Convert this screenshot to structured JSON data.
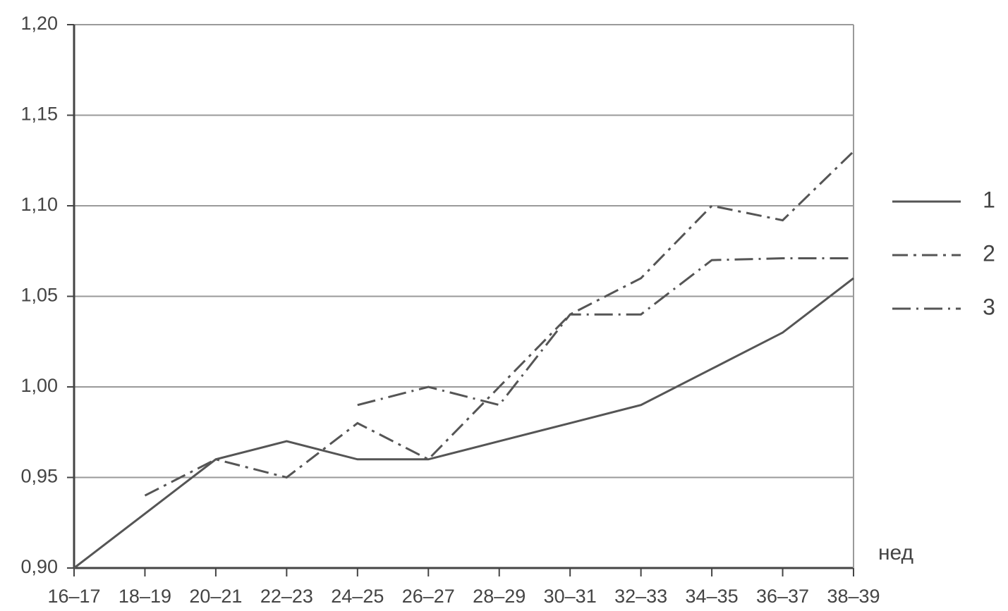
{
  "chart_data": {
    "type": "line",
    "categories": [
      "16–17",
      "18–19",
      "20–21",
      "22–23",
      "24–25",
      "26–27",
      "28–29",
      "30–31",
      "32–33",
      "34–35",
      "36–37",
      "38–39"
    ],
    "x_label": "нед",
    "series": [
      {
        "name": "1",
        "color": "#555555",
        "dash": "solid",
        "values": [
          0.9,
          0.93,
          0.96,
          0.97,
          0.96,
          0.96,
          0.97,
          0.98,
          0.99,
          1.01,
          1.03,
          1.06
        ]
      },
      {
        "name": "2",
        "color": "#555555",
        "dash": "dash-dot-dot",
        "values": [
          null,
          0.94,
          0.96,
          0.95,
          0.98,
          0.96,
          1.0,
          1.04,
          1.06,
          1.1,
          1.092,
          1.13
        ]
      },
      {
        "name": "3",
        "color": "#555555",
        "dash": "dash-dot",
        "values": [
          null,
          null,
          null,
          null,
          0.99,
          1.0,
          0.99,
          1.04,
          1.04,
          1.07,
          1.071,
          1.071
        ]
      }
    ],
    "ylim": [
      0.9,
      1.2
    ],
    "yticks": [
      {
        "value": 0.9,
        "label": "0,90"
      },
      {
        "value": 0.95,
        "label": "0,95"
      },
      {
        "value": 1.0,
        "label": "1,00"
      },
      {
        "value": 1.05,
        "label": "1,05"
      },
      {
        "value": 1.1,
        "label": "1,10"
      },
      {
        "value": 1.15,
        "label": "1,15"
      },
      {
        "value": 1.2,
        "label": "1,20"
      }
    ],
    "grid": true,
    "legend": "right"
  }
}
